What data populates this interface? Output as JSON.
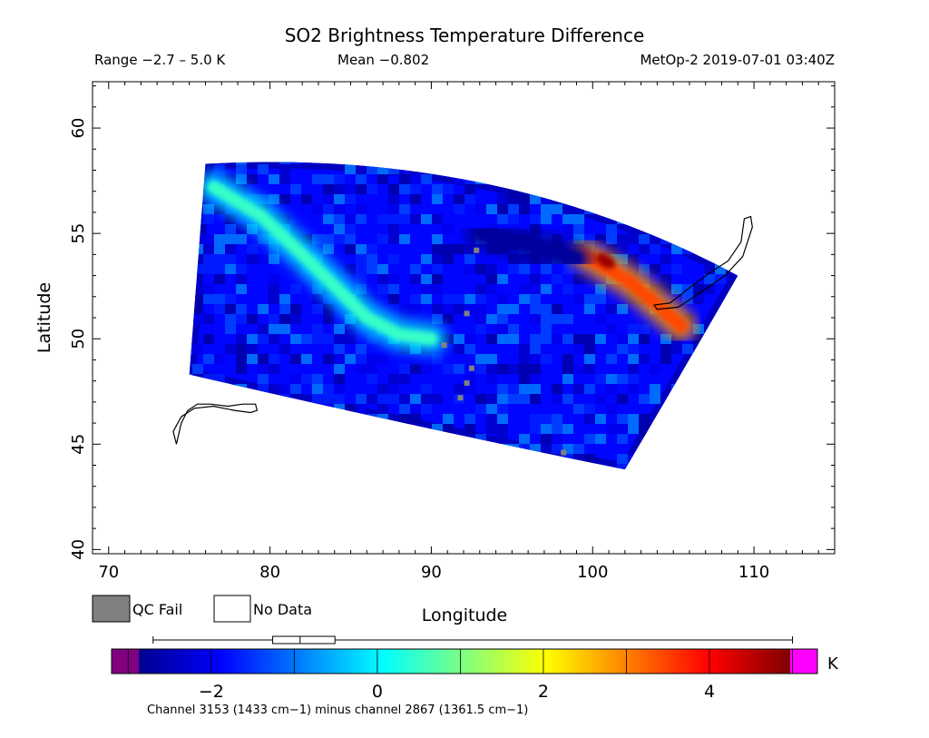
{
  "chart_data": {
    "type": "heatmap",
    "title": "SO2 Brightness Temperature Difference",
    "subtitle_left": "Range −2.7 – 5.0 K",
    "subtitle_mid": "Mean −0.802",
    "subtitle_right": "MetOp-2 2019-07-01 03:40Z",
    "xlabel": "Longitude",
    "ylabel": "Latitude",
    "xlim": [
      69,
      115
    ],
    "ylim": [
      39.8,
      62.2
    ],
    "xticks": [
      70,
      80,
      90,
      100,
      110
    ],
    "xtick_labels": [
      "70",
      "80",
      "90",
      "100",
      "110"
    ],
    "yticks": [
      40,
      45,
      50,
      55,
      60
    ],
    "ytick_labels": [
      "40",
      "45",
      "50",
      "55",
      "60"
    ],
    "swath": {
      "corners_lon_lat": {
        "top_left": [
          76,
          58.3
        ],
        "top_right": [
          109,
          53
        ],
        "bottom_left": [
          75,
          48.3
        ],
        "bottom_right": [
          102,
          43.8
        ]
      },
      "background_value": -1.7,
      "features": [
        {
          "name": "western arc",
          "value": 0.6,
          "path_lon_lat": [
            [
              76.5,
              57.2
            ],
            [
              79.5,
              55.8
            ],
            [
              82,
              54
            ],
            [
              84,
              52.5
            ],
            [
              86,
              51
            ],
            [
              88,
              50.2
            ],
            [
              90,
              50
            ]
          ]
        },
        {
          "name": "eastern plume",
          "value": 3.5,
          "path_lon_lat": [
            [
              99.5,
              54
            ],
            [
              101,
              53.3
            ],
            [
              102.5,
              52.6
            ],
            [
              104,
              51.6
            ],
            [
              105.5,
              50.6
            ]
          ]
        },
        {
          "name": "plume core",
          "value": 4.8,
          "lon_lat": [
            100.8,
            53.7
          ]
        },
        {
          "name": "northern dark band",
          "value": -2.6,
          "path_lon_lat": [
            [
              93,
              55
            ],
            [
              96,
              54.5
            ],
            [
              99,
              53.8
            ]
          ]
        }
      ]
    },
    "qc_fail_points_lon_lat": [
      [
        90.8,
        49.7
      ],
      [
        92.5,
        48.6
      ],
      [
        92.2,
        47.9
      ],
      [
        91.8,
        47.2
      ],
      [
        98.2,
        44.6
      ],
      [
        92.2,
        51.2
      ],
      [
        92.8,
        54.2
      ]
    ],
    "legend": {
      "qc_fail_label": "QC Fail",
      "no_data_label": "No Data",
      "qc_fail_color": "#808080",
      "no_data_color": "#ffffff"
    },
    "colorbar": {
      "range": [
        -3.2,
        5.3
      ],
      "colormap": "jet",
      "under_color": "#800080",
      "over_color": "#ff00ff",
      "data_range": [
        -2.7,
        5.0
      ],
      "ticks": [
        -2,
        0,
        2,
        4
      ],
      "tick_labels": [
        "−2",
        "0",
        "2",
        "4"
      ],
      "unit": "K",
      "caption": "Channel 3153 (1433 cm−1) minus channel 2867 (1361.5 cm−1)",
      "boxplot": {
        "whisker_low": -2.7,
        "q1": -1.26,
        "median": -0.93,
        "q3": -0.51,
        "whisker_high": 5.0
      }
    }
  }
}
